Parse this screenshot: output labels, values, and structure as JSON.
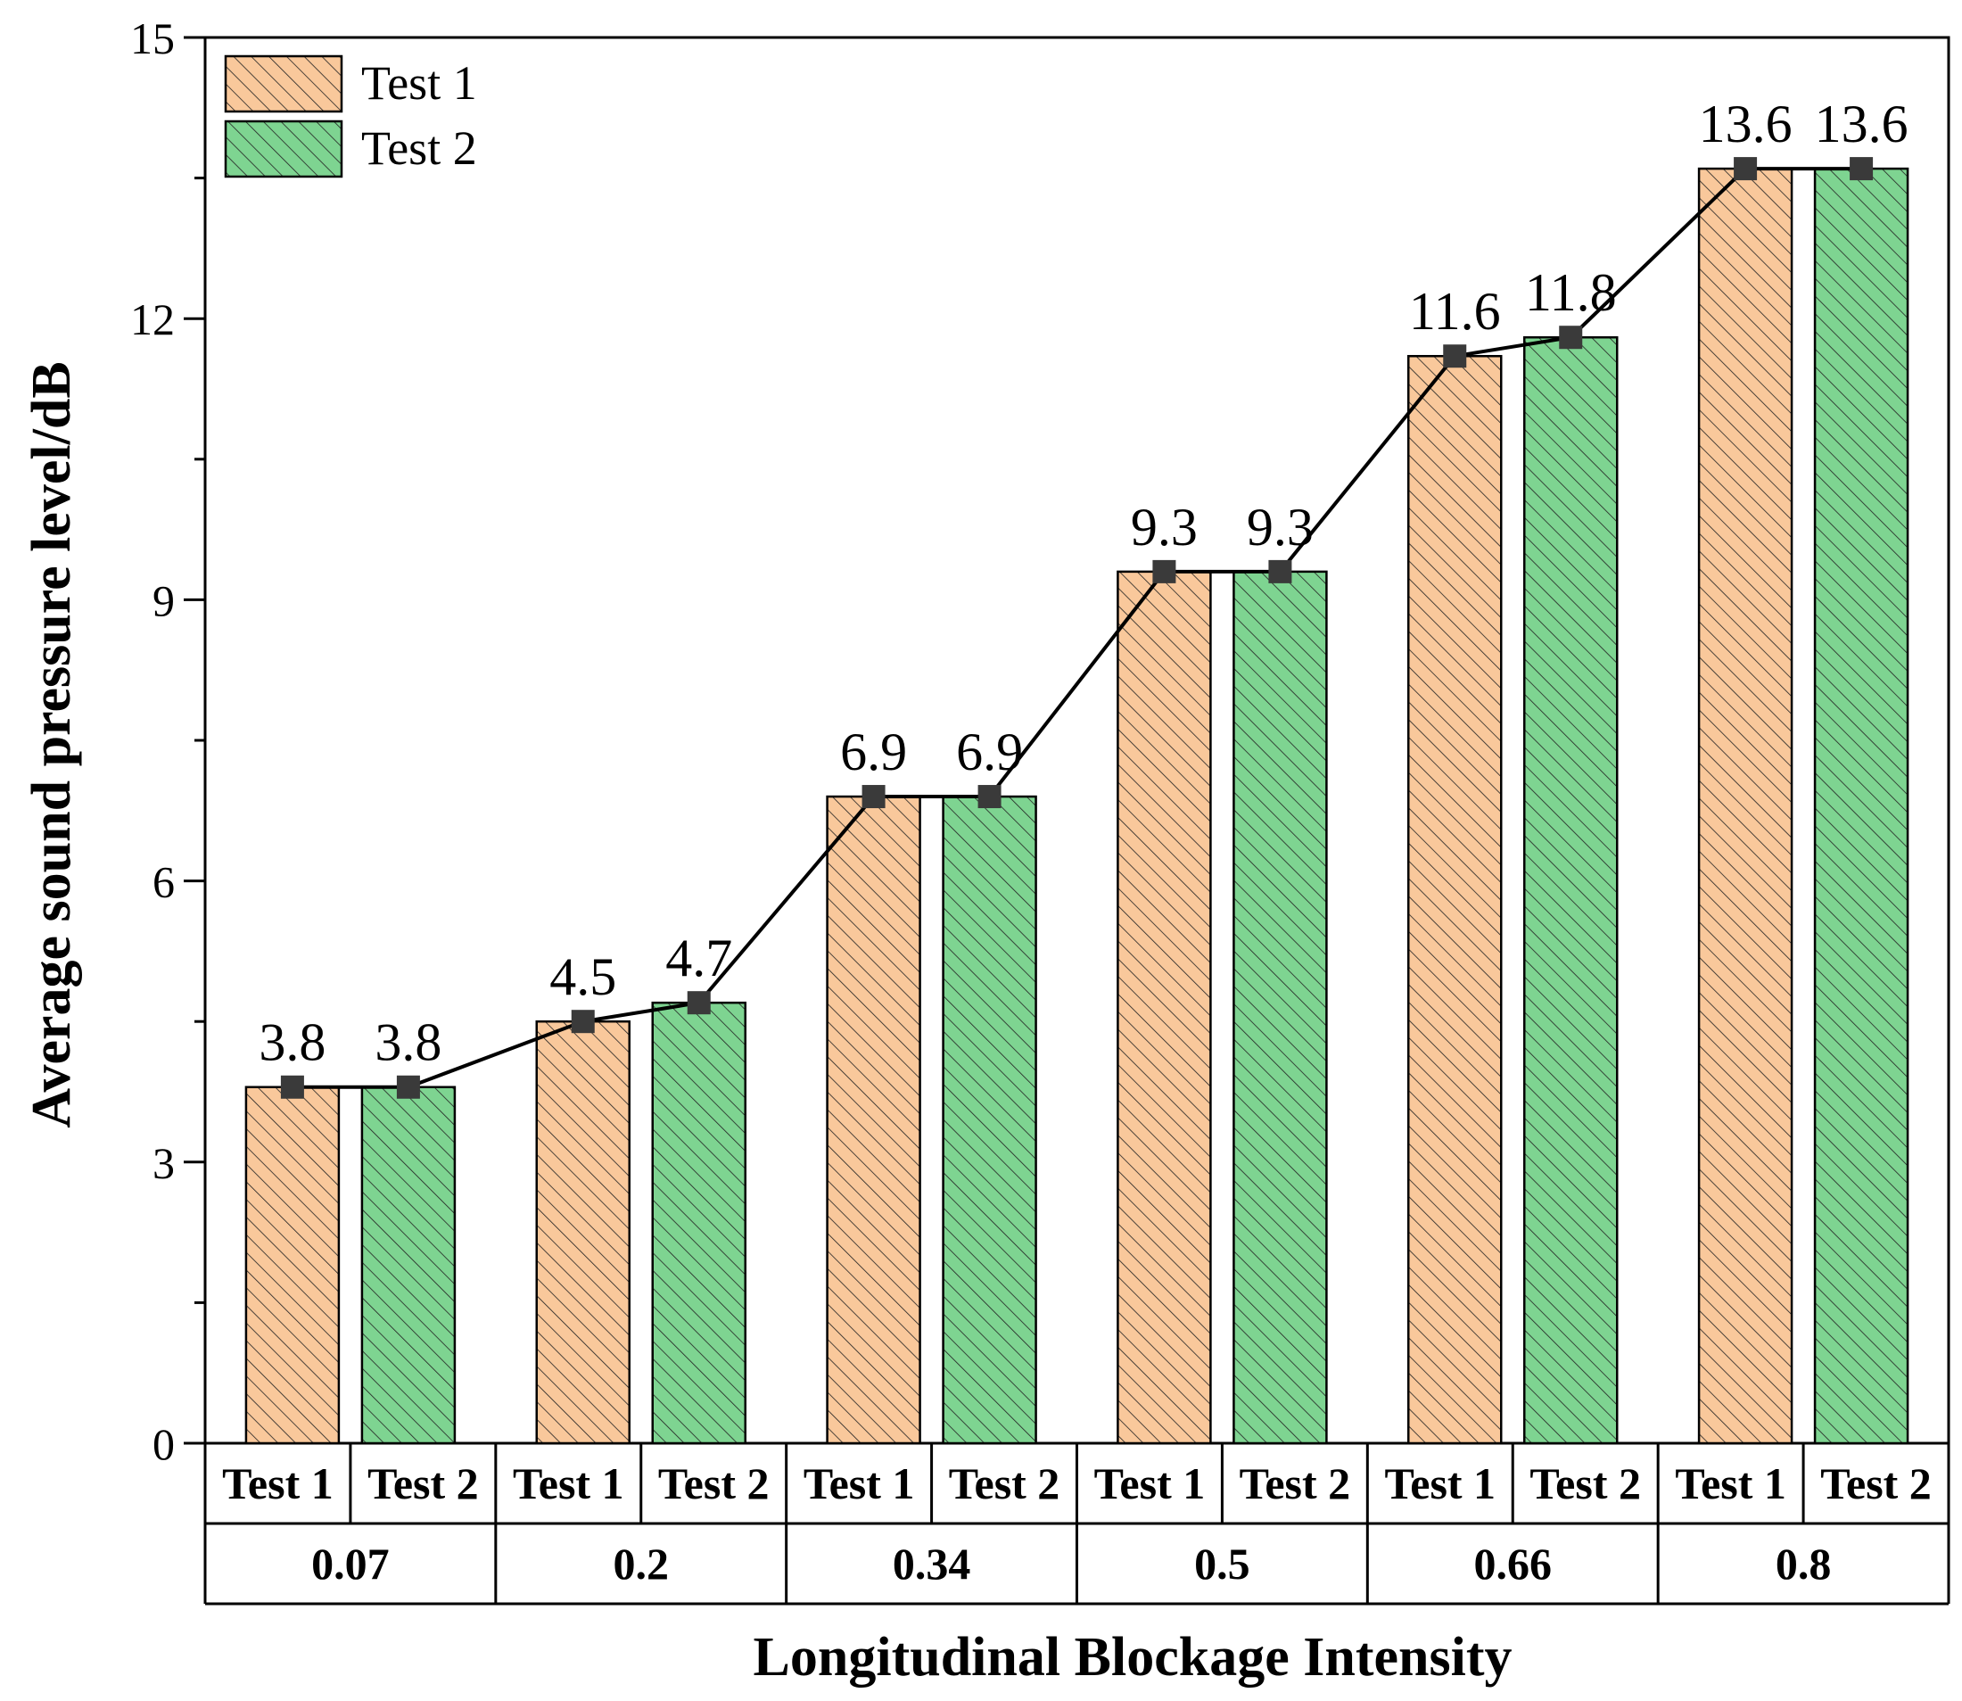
{
  "chart_data": {
    "type": "bar",
    "title": "",
    "xlabel": "Longitudinal Blockage Intensity",
    "ylabel": "Average sound pressure level/dB",
    "ylim": [
      0,
      15
    ],
    "yticks": [
      0,
      3,
      6,
      9,
      12,
      15
    ],
    "grid": false,
    "legend_position": "top-left",
    "categories": [
      "0.07",
      "0.2",
      "0.34",
      "0.5",
      "0.66",
      "0.8"
    ],
    "series": [
      {
        "name": "Test 1",
        "color": "#f9c89b",
        "hatch": "diagonal",
        "values": [
          3.8,
          4.5,
          6.9,
          9.3,
          11.6,
          13.6
        ]
      },
      {
        "name": "Test 2",
        "color": "#7ed491",
        "hatch": "diagonal",
        "values": [
          3.8,
          4.7,
          6.9,
          9.3,
          11.8,
          13.6
        ]
      }
    ],
    "data_labels": [
      "3.8",
      "3.8",
      "4.5",
      "4.7",
      "6.9",
      "6.9",
      "9.3",
      "9.3",
      "11.6",
      "11.8",
      "13.6",
      "13.6"
    ],
    "connecting_line": {
      "color": "#000000",
      "marker": "square",
      "marker_color": "#3a3a3a"
    },
    "sub_axis_labels": [
      "Test 1",
      "Test 2",
      "Test 1",
      "Test 2",
      "Test 1",
      "Test 2",
      "Test 1",
      "Test 2",
      "Test 1",
      "Test 2",
      "Test 1",
      "Test 2"
    ]
  }
}
